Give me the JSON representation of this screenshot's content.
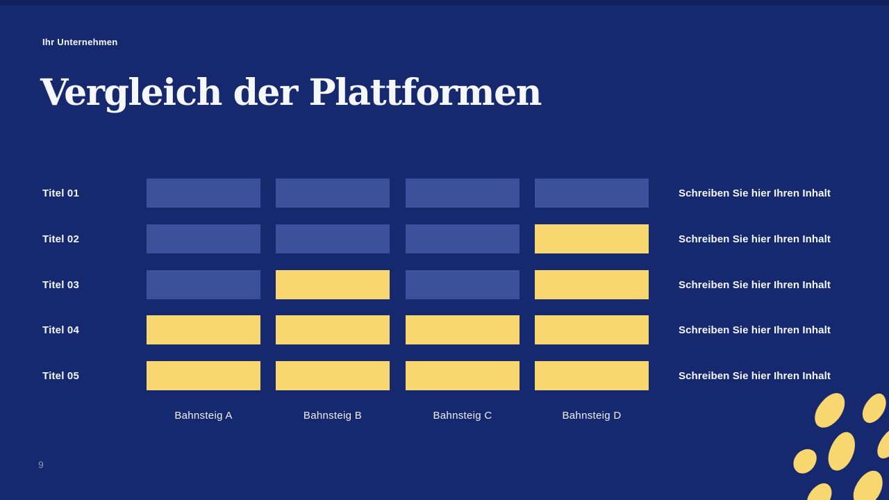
{
  "slide": {
    "company": "Ihr Unternehmen",
    "title": "Vergleich der Plattformen",
    "page_number": "9"
  },
  "matrix": {
    "columns": [
      "Bahnsteig A",
      "Bahnsteig B",
      "Bahnsteig C",
      "Bahnsteig D"
    ],
    "rows": [
      {
        "label": "Titel 01",
        "cells": [
          "blue",
          "blue",
          "blue",
          "blue"
        ],
        "note": "Schreiben Sie hier Ihren Inhalt"
      },
      {
        "label": "Titel 02",
        "cells": [
          "blue",
          "blue",
          "blue",
          "yellow"
        ],
        "note": "Schreiben Sie hier Ihren Inhalt"
      },
      {
        "label": "Titel 03",
        "cells": [
          "blue",
          "yellow",
          "blue",
          "yellow"
        ],
        "note": "Schreiben Sie hier Ihren Inhalt"
      },
      {
        "label": "Titel 04",
        "cells": [
          "yellow",
          "yellow",
          "yellow",
          "yellow"
        ],
        "note": "Schreiben Sie hier Ihren Inhalt"
      },
      {
        "label": "Titel 05",
        "cells": [
          "yellow",
          "yellow",
          "yellow",
          "yellow"
        ],
        "note": "Schreiben Sie hier Ihren Inhalt"
      }
    ]
  },
  "colors": {
    "background": "#16296F",
    "cell_blue": "#3B519B",
    "cell_yellow": "#F8D670",
    "text": "#F5F7FC",
    "page_number": "#9096A9",
    "decoration_yellow": "#F8D670"
  }
}
